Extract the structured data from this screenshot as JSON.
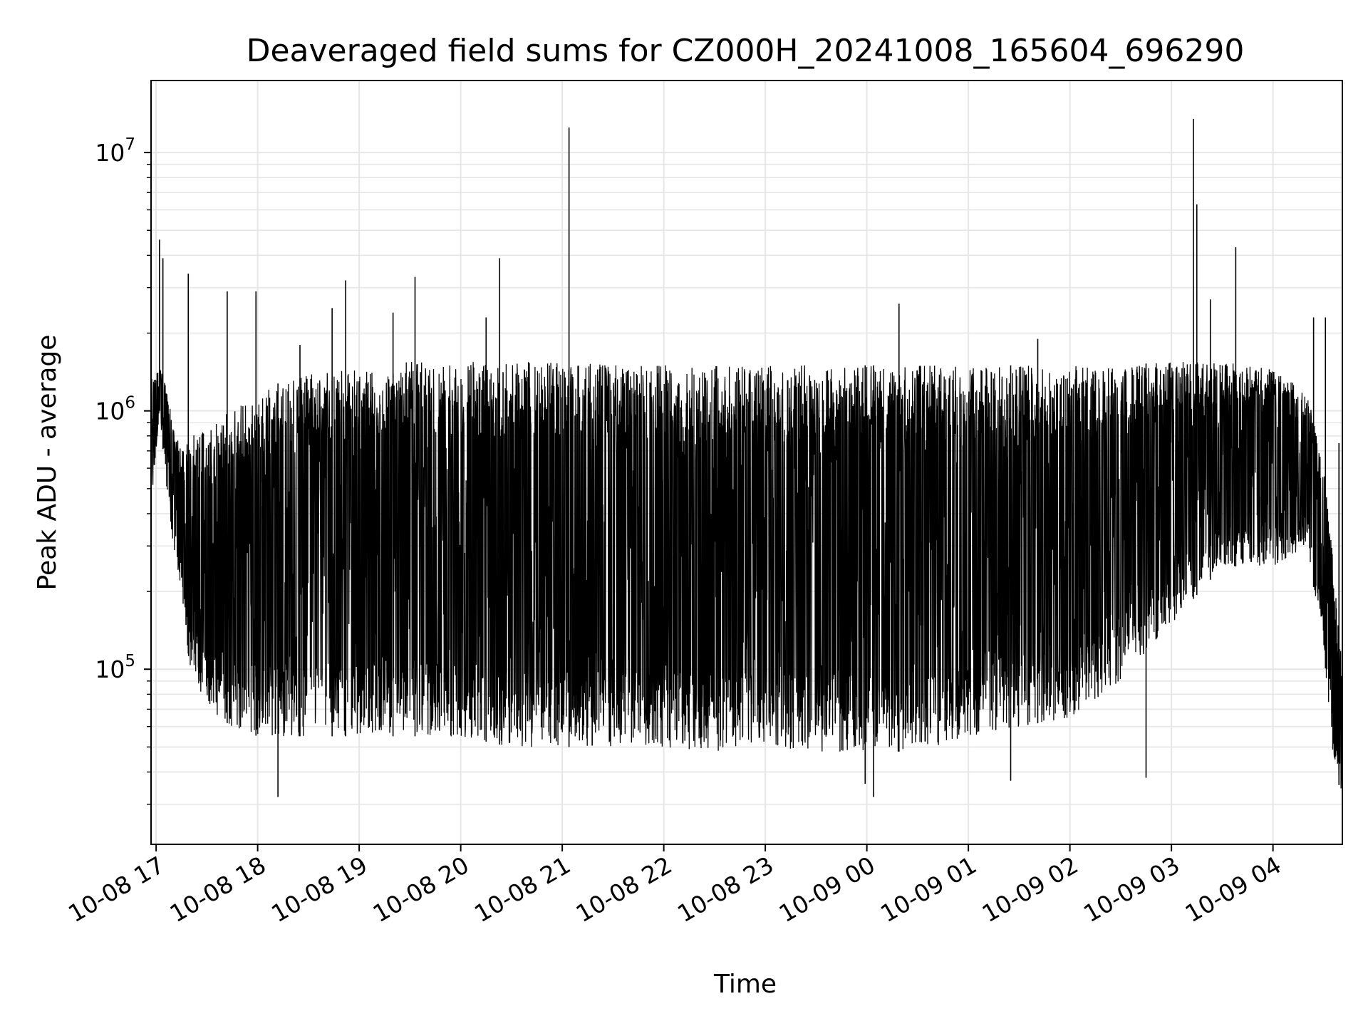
{
  "chart_data": {
    "type": "line",
    "title": "Deaveraged field sums for CZ000H_20241008_165604_696290",
    "xlabel": "Time",
    "ylabel": "Peak ADU - average",
    "yscale": "log",
    "grid": true,
    "legend": "none",
    "line_color": "#000000",
    "xlim": [
      "2024-10-08 16:57",
      "2024-10-09 04:41"
    ],
    "ylim": [
      21000,
      19000000
    ],
    "x_ticks": [
      {
        "value": "2024-10-08 17:00",
        "label": "10-08 17"
      },
      {
        "value": "2024-10-08 18:00",
        "label": "10-08 18"
      },
      {
        "value": "2024-10-08 19:00",
        "label": "10-08 19"
      },
      {
        "value": "2024-10-08 20:00",
        "label": "10-08 20"
      },
      {
        "value": "2024-10-08 21:00",
        "label": "10-08 21"
      },
      {
        "value": "2024-10-08 22:00",
        "label": "10-08 22"
      },
      {
        "value": "2024-10-08 23:00",
        "label": "10-08 23"
      },
      {
        "value": "2024-10-09 00:00",
        "label": "10-09 00"
      },
      {
        "value": "2024-10-09 01:00",
        "label": "10-09 01"
      },
      {
        "value": "2024-10-09 02:00",
        "label": "10-09 02"
      },
      {
        "value": "2024-10-09 03:00",
        "label": "10-09 03"
      },
      {
        "value": "2024-10-09 04:00",
        "label": "10-09 04"
      }
    ],
    "y_ticks": [
      {
        "value": 100000,
        "base": "10",
        "exp": "5"
      },
      {
        "value": 1000000,
        "base": "10",
        "exp": "6"
      },
      {
        "value": 10000000,
        "base": "10",
        "exp": "7"
      }
    ],
    "envelope": {
      "x": [
        "2024-10-08 16:57",
        "2024-10-08 17:02",
        "2024-10-08 17:05",
        "2024-10-08 17:10",
        "2024-10-08 17:15",
        "2024-10-08 17:20",
        "2024-10-08 17:30",
        "2024-10-08 17:45",
        "2024-10-08 18:00",
        "2024-10-08 18:30",
        "2024-10-08 19:00",
        "2024-10-08 19:30",
        "2024-10-08 20:00",
        "2024-10-08 20:30",
        "2024-10-08 21:00",
        "2024-10-08 21:30",
        "2024-10-08 22:00",
        "2024-10-08 22:30",
        "2024-10-08 23:00",
        "2024-10-08 23:30",
        "2024-10-09 00:00",
        "2024-10-09 00:30",
        "2024-10-09 01:00",
        "2024-10-09 01:30",
        "2024-10-09 02:00",
        "2024-10-09 02:30",
        "2024-10-09 03:00",
        "2024-10-09 03:30",
        "2024-10-09 04:00",
        "2024-10-09 04:20",
        "2024-10-09 04:30",
        "2024-10-09 04:35",
        "2024-10-09 04:41"
      ],
      "upper": [
        1400000,
        1500000,
        1300000,
        900000,
        700000,
        800000,
        900000,
        1000000,
        1200000,
        1400000,
        1500000,
        1550000,
        1550000,
        1550000,
        1550000,
        1500000,
        1500000,
        1500000,
        1500000,
        1500000,
        1500000,
        1500000,
        1500000,
        1500000,
        1500000,
        1500000,
        1550000,
        1550000,
        1450000,
        1200000,
        600000,
        300000,
        100000
      ],
      "lower": [
        400000,
        1000000,
        600000,
        300000,
        200000,
        100000,
        70000,
        60000,
        55000,
        55000,
        55000,
        55000,
        55000,
        50000,
        50000,
        50000,
        50000,
        48000,
        50000,
        48000,
        48000,
        48000,
        55000,
        60000,
        65000,
        90000,
        150000,
        250000,
        250000,
        300000,
        120000,
        50000,
        30000
      ]
    },
    "spikes": [
      {
        "x": "2024-10-08 17:02",
        "y": 4600000
      },
      {
        "x": "2024-10-08 17:04",
        "y": 3900000
      },
      {
        "x": "2024-10-08 17:19",
        "y": 3400000
      },
      {
        "x": "2024-10-08 17:42",
        "y": 2900000
      },
      {
        "x": "2024-10-08 17:59",
        "y": 2900000
      },
      {
        "x": "2024-10-08 18:25",
        "y": 1800000
      },
      {
        "x": "2024-10-08 18:44",
        "y": 2500000
      },
      {
        "x": "2024-10-08 18:52",
        "y": 3200000
      },
      {
        "x": "2024-10-08 19:20",
        "y": 2400000
      },
      {
        "x": "2024-10-08 19:33",
        "y": 3300000
      },
      {
        "x": "2024-10-08 20:15",
        "y": 2300000
      },
      {
        "x": "2024-10-08 20:23",
        "y": 3900000
      },
      {
        "x": "2024-10-08 21:04",
        "y": 12500000
      },
      {
        "x": "2024-10-09 00:19",
        "y": 2600000
      },
      {
        "x": "2024-10-09 01:41",
        "y": 1900000
      },
      {
        "x": "2024-10-09 03:13",
        "y": 13500000
      },
      {
        "x": "2024-10-09 03:15",
        "y": 6300000
      },
      {
        "x": "2024-10-09 03:23",
        "y": 2700000
      },
      {
        "x": "2024-10-09 03:38",
        "y": 4300000
      },
      {
        "x": "2024-10-09 04:24",
        "y": 2300000
      },
      {
        "x": "2024-10-09 04:31",
        "y": 2300000
      },
      {
        "x": "2024-10-09 04:39",
        "y": 750000
      }
    ],
    "dips": [
      {
        "x": "2024-10-08 18:12",
        "y": 32000
      },
      {
        "x": "2024-10-08 23:59",
        "y": 36000
      },
      {
        "x": "2024-10-09 00:04",
        "y": 32000
      },
      {
        "x": "2024-10-09 01:25",
        "y": 37000
      },
      {
        "x": "2024-10-09 02:45",
        "y": 38000
      },
      {
        "x": "2024-10-09 04:41",
        "y": 30000
      }
    ]
  }
}
